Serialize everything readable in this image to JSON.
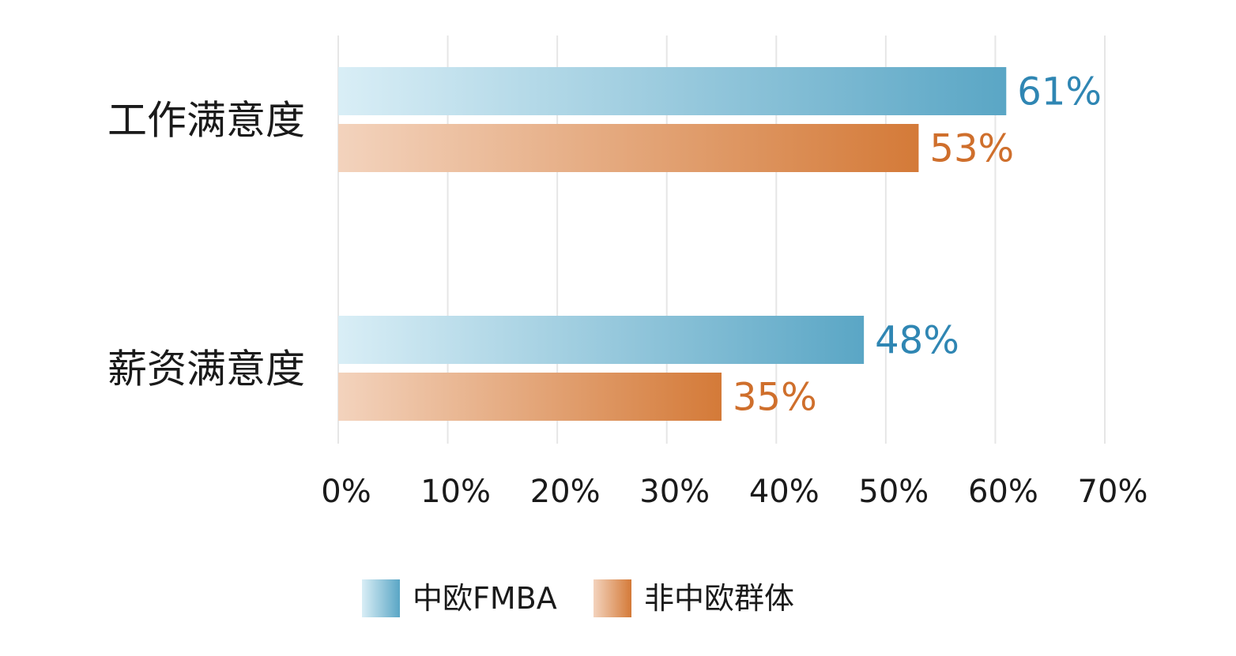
{
  "chart_data": {
    "type": "bar",
    "orientation": "horizontal",
    "categories": [
      "工作满意度",
      "薪资满意度"
    ],
    "series": [
      {
        "name": "中欧FMBA",
        "values": [
          61,
          48
        ],
        "labels": [
          "61%",
          "48%"
        ],
        "color": "#5aa6c5",
        "color_light": "#d9eef6",
        "label_color": "#2f86b3"
      },
      {
        "name": "非中欧群体",
        "values": [
          53,
          35
        ],
        "labels": [
          "53%",
          "35%"
        ],
        "color": "#d47a38",
        "color_light": "#f3d3bd",
        "label_color": "#cf6f2c"
      }
    ],
    "xlim": [
      0,
      70
    ],
    "xticks": [
      0,
      10,
      20,
      30,
      40,
      50,
      60,
      70
    ],
    "xtick_labels": [
      "0%",
      "10%",
      "20%",
      "30%",
      "40%",
      "50%",
      "60%",
      "70%"
    ],
    "grid": "vertical",
    "legend_position": "bottom-center"
  }
}
